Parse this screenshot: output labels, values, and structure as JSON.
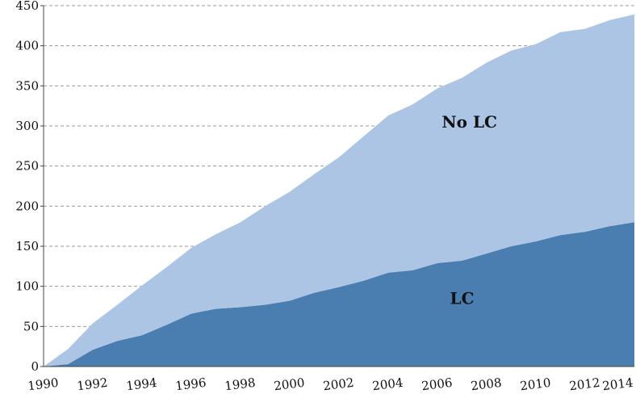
{
  "chart_data": {
    "type": "area",
    "stacked": true,
    "title": "",
    "xlabel": "",
    "ylabel": "",
    "ylim": [
      0,
      450
    ],
    "xlim": [
      1990,
      2014
    ],
    "y_ticks": [
      0,
      50,
      100,
      150,
      200,
      250,
      300,
      350,
      400,
      450
    ],
    "x_ticks": [
      1990,
      1992,
      1994,
      1996,
      1998,
      2000,
      2002,
      2004,
      2006,
      2008,
      2010,
      2012,
      2014
    ],
    "grid": true,
    "x": [
      1990,
      1991,
      1992,
      1993,
      1994,
      1995,
      1996,
      1997,
      1998,
      1999,
      2000,
      2001,
      2002,
      2003,
      2004,
      2005,
      2006,
      2007,
      2008,
      2009,
      2010,
      2011,
      2012,
      2013,
      2014
    ],
    "series": [
      {
        "name": "LC",
        "color": "#4a7eb0",
        "values": [
          0,
          3,
          21,
          32,
          39,
          52,
          66,
          72,
          74,
          77,
          82,
          92,
          99,
          107,
          117,
          120,
          129,
          132,
          141,
          150,
          156,
          164,
          168,
          175,
          180
        ]
      },
      {
        "name": "No LC",
        "color": "#adc5e4",
        "values": [
          0,
          19,
          33,
          45,
          62,
          72,
          82,
          93,
          106,
          123,
          136,
          148,
          162,
          180,
          196,
          207,
          218,
          228,
          238,
          244,
          246,
          253,
          253,
          257,
          259
        ]
      }
    ]
  }
}
